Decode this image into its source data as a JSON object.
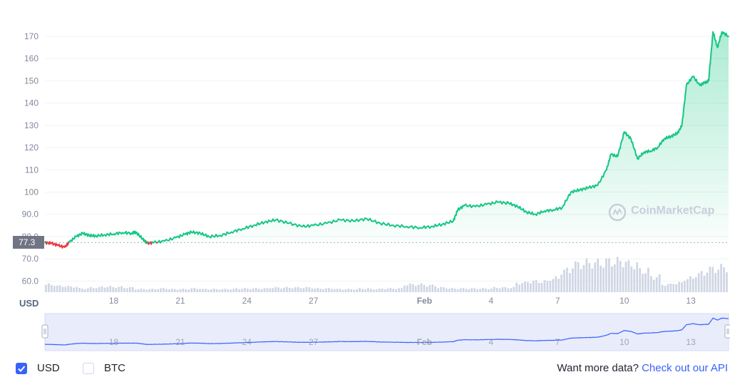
{
  "chart_data": {
    "type": "area",
    "currency_axis_label": "USD",
    "y_ticks": [
      "60.0",
      "70.0",
      "80.0",
      "90.0",
      "100",
      "110",
      "120",
      "130",
      "140",
      "150",
      "160",
      "170"
    ],
    "x_ticks": [
      {
        "label": "18",
        "day": 18
      },
      {
        "label": "21",
        "day": 21
      },
      {
        "label": "24",
        "day": 24
      },
      {
        "label": "27",
        "day": 27
      },
      {
        "label": "Feb",
        "day": 32,
        "bold": true
      },
      {
        "label": "4",
        "day": 35
      },
      {
        "label": "7",
        "day": 38
      },
      {
        "label": "10",
        "day": 41
      },
      {
        "label": "13",
        "day": 44
      }
    ],
    "ylim": [
      55,
      178
    ],
    "x_start_day": 14.9,
    "x_end_day": 45.7,
    "reference_price": 77.3,
    "reference_price_label": "77.3",
    "series": [
      {
        "values_day": [
          14.9,
          15.2,
          15.5,
          15.8,
          16.0,
          16.3,
          16.6,
          16.9,
          17.2,
          17.6,
          18.0,
          18.4,
          18.8,
          19.0,
          19.3,
          19.5,
          19.8,
          20.3,
          20.8,
          21.2,
          21.5,
          21.9,
          22.3,
          22.8,
          23.3,
          23.8,
          24.3,
          24.8,
          25.3,
          25.9,
          26.5,
          27.0,
          27.6,
          28.2,
          28.8,
          29.4,
          30.0,
          30.6,
          31.2,
          31.8,
          32.3,
          32.8,
          33.3,
          33.5,
          33.8,
          34.3,
          34.8,
          35.3,
          35.8,
          36.2,
          36.6,
          37.0,
          37.4,
          37.8,
          38.2,
          38.6,
          39.0,
          39.4,
          39.8,
          40.2,
          40.4,
          40.7,
          41.0,
          41.3,
          41.6,
          41.9,
          42.2,
          42.5,
          42.8,
          43.1,
          43.4,
          43.6,
          43.8,
          44.1,
          44.4,
          44.6,
          44.8,
          45.0,
          45.2,
          45.4,
          45.7
        ],
        "values_price": [
          77.3,
          77.0,
          76.0,
          75.2,
          77.5,
          80.0,
          81.5,
          80.5,
          80.3,
          80.8,
          81.2,
          81.8,
          81.5,
          82.0,
          79.0,
          77.0,
          77.3,
          78.0,
          79.5,
          81.0,
          82.0,
          81.5,
          80.0,
          80.5,
          82.0,
          83.5,
          85.0,
          86.5,
          87.5,
          86.0,
          84.5,
          85.0,
          86.0,
          87.5,
          87.0,
          88.0,
          86.0,
          85.0,
          84.5,
          84.0,
          84.5,
          85.5,
          87.0,
          92.0,
          94.0,
          93.5,
          94.5,
          95.5,
          95.0,
          93.5,
          91.0,
          90.0,
          91.5,
          92.0,
          93.0,
          100.0,
          101.0,
          102.0,
          103.0,
          110.0,
          117.0,
          116.0,
          127.0,
          124.0,
          115.0,
          118.0,
          118.5,
          120.0,
          124.0,
          125.0,
          126.5,
          130.0,
          148.0,
          152.0,
          148.0,
          149.0,
          150.0,
          172.0,
          165.0,
          172.0,
          170.0
        ]
      }
    ],
    "volume_relative": [
      0.25,
      0.2,
      0.18,
      0.12,
      0.15,
      0.18,
      0.17,
      0.15,
      0.1,
      0.1,
      0.12,
      0.1,
      0.1,
      0.12,
      0.1,
      0.1,
      0.1,
      0.12,
      0.12,
      0.12,
      0.15,
      0.15,
      0.15,
      0.15,
      0.12,
      0.12,
      0.1,
      0.1,
      0.12,
      0.1,
      0.12,
      0.12,
      0.25,
      0.25,
      0.22,
      0.15,
      0.12,
      0.12,
      0.12,
      0.12,
      0.15,
      0.15,
      0.3,
      0.35,
      0.35,
      0.45,
      0.7,
      0.9,
      0.95,
      0.95,
      1.0,
      1.0,
      0.9,
      0.7,
      0.5,
      0.25,
      0.3,
      0.45,
      0.6,
      0.75,
      0.8
    ]
  },
  "navigator": {
    "x_ticks": [
      "18",
      "21",
      "24",
      "27",
      "Feb",
      "4",
      "7",
      "10",
      "13"
    ]
  },
  "watermark": "CoinMarketCap",
  "footer": {
    "usd_label": "USD",
    "btc_label": "BTC",
    "api_prefix": "Want more data?",
    "api_link": "Check out our API"
  },
  "colors": {
    "up_line": "#16c784",
    "down_line": "#ea3943",
    "area_fill": "#16c784",
    "volume": "#cfd6e4",
    "navigator_fill": "#e8ecfb",
    "navigator_line": "#3861fb",
    "check_on": "#3861fb"
  }
}
